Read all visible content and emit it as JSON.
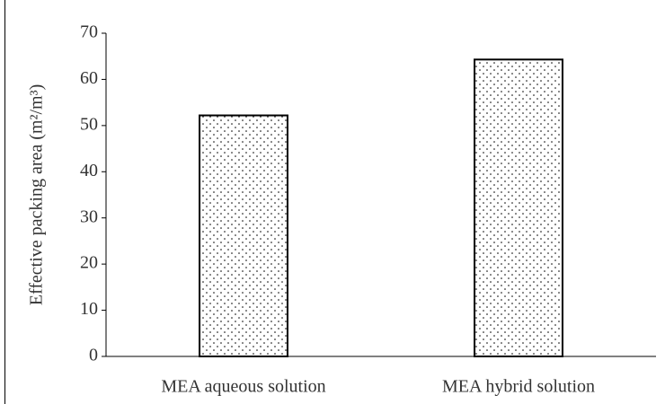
{
  "chart_data": {
    "type": "bar",
    "y_label": "Effective packing area (m²/m³)",
    "categories": [
      "MEA aqueous solution",
      "MEA hybrid solution"
    ],
    "values": [
      52.2,
      64.3
    ],
    "color": "#000000",
    "ylim": [
      0,
      70
    ],
    "yticks": [
      0,
      10,
      20,
      30,
      40,
      50,
      60,
      70
    ]
  }
}
